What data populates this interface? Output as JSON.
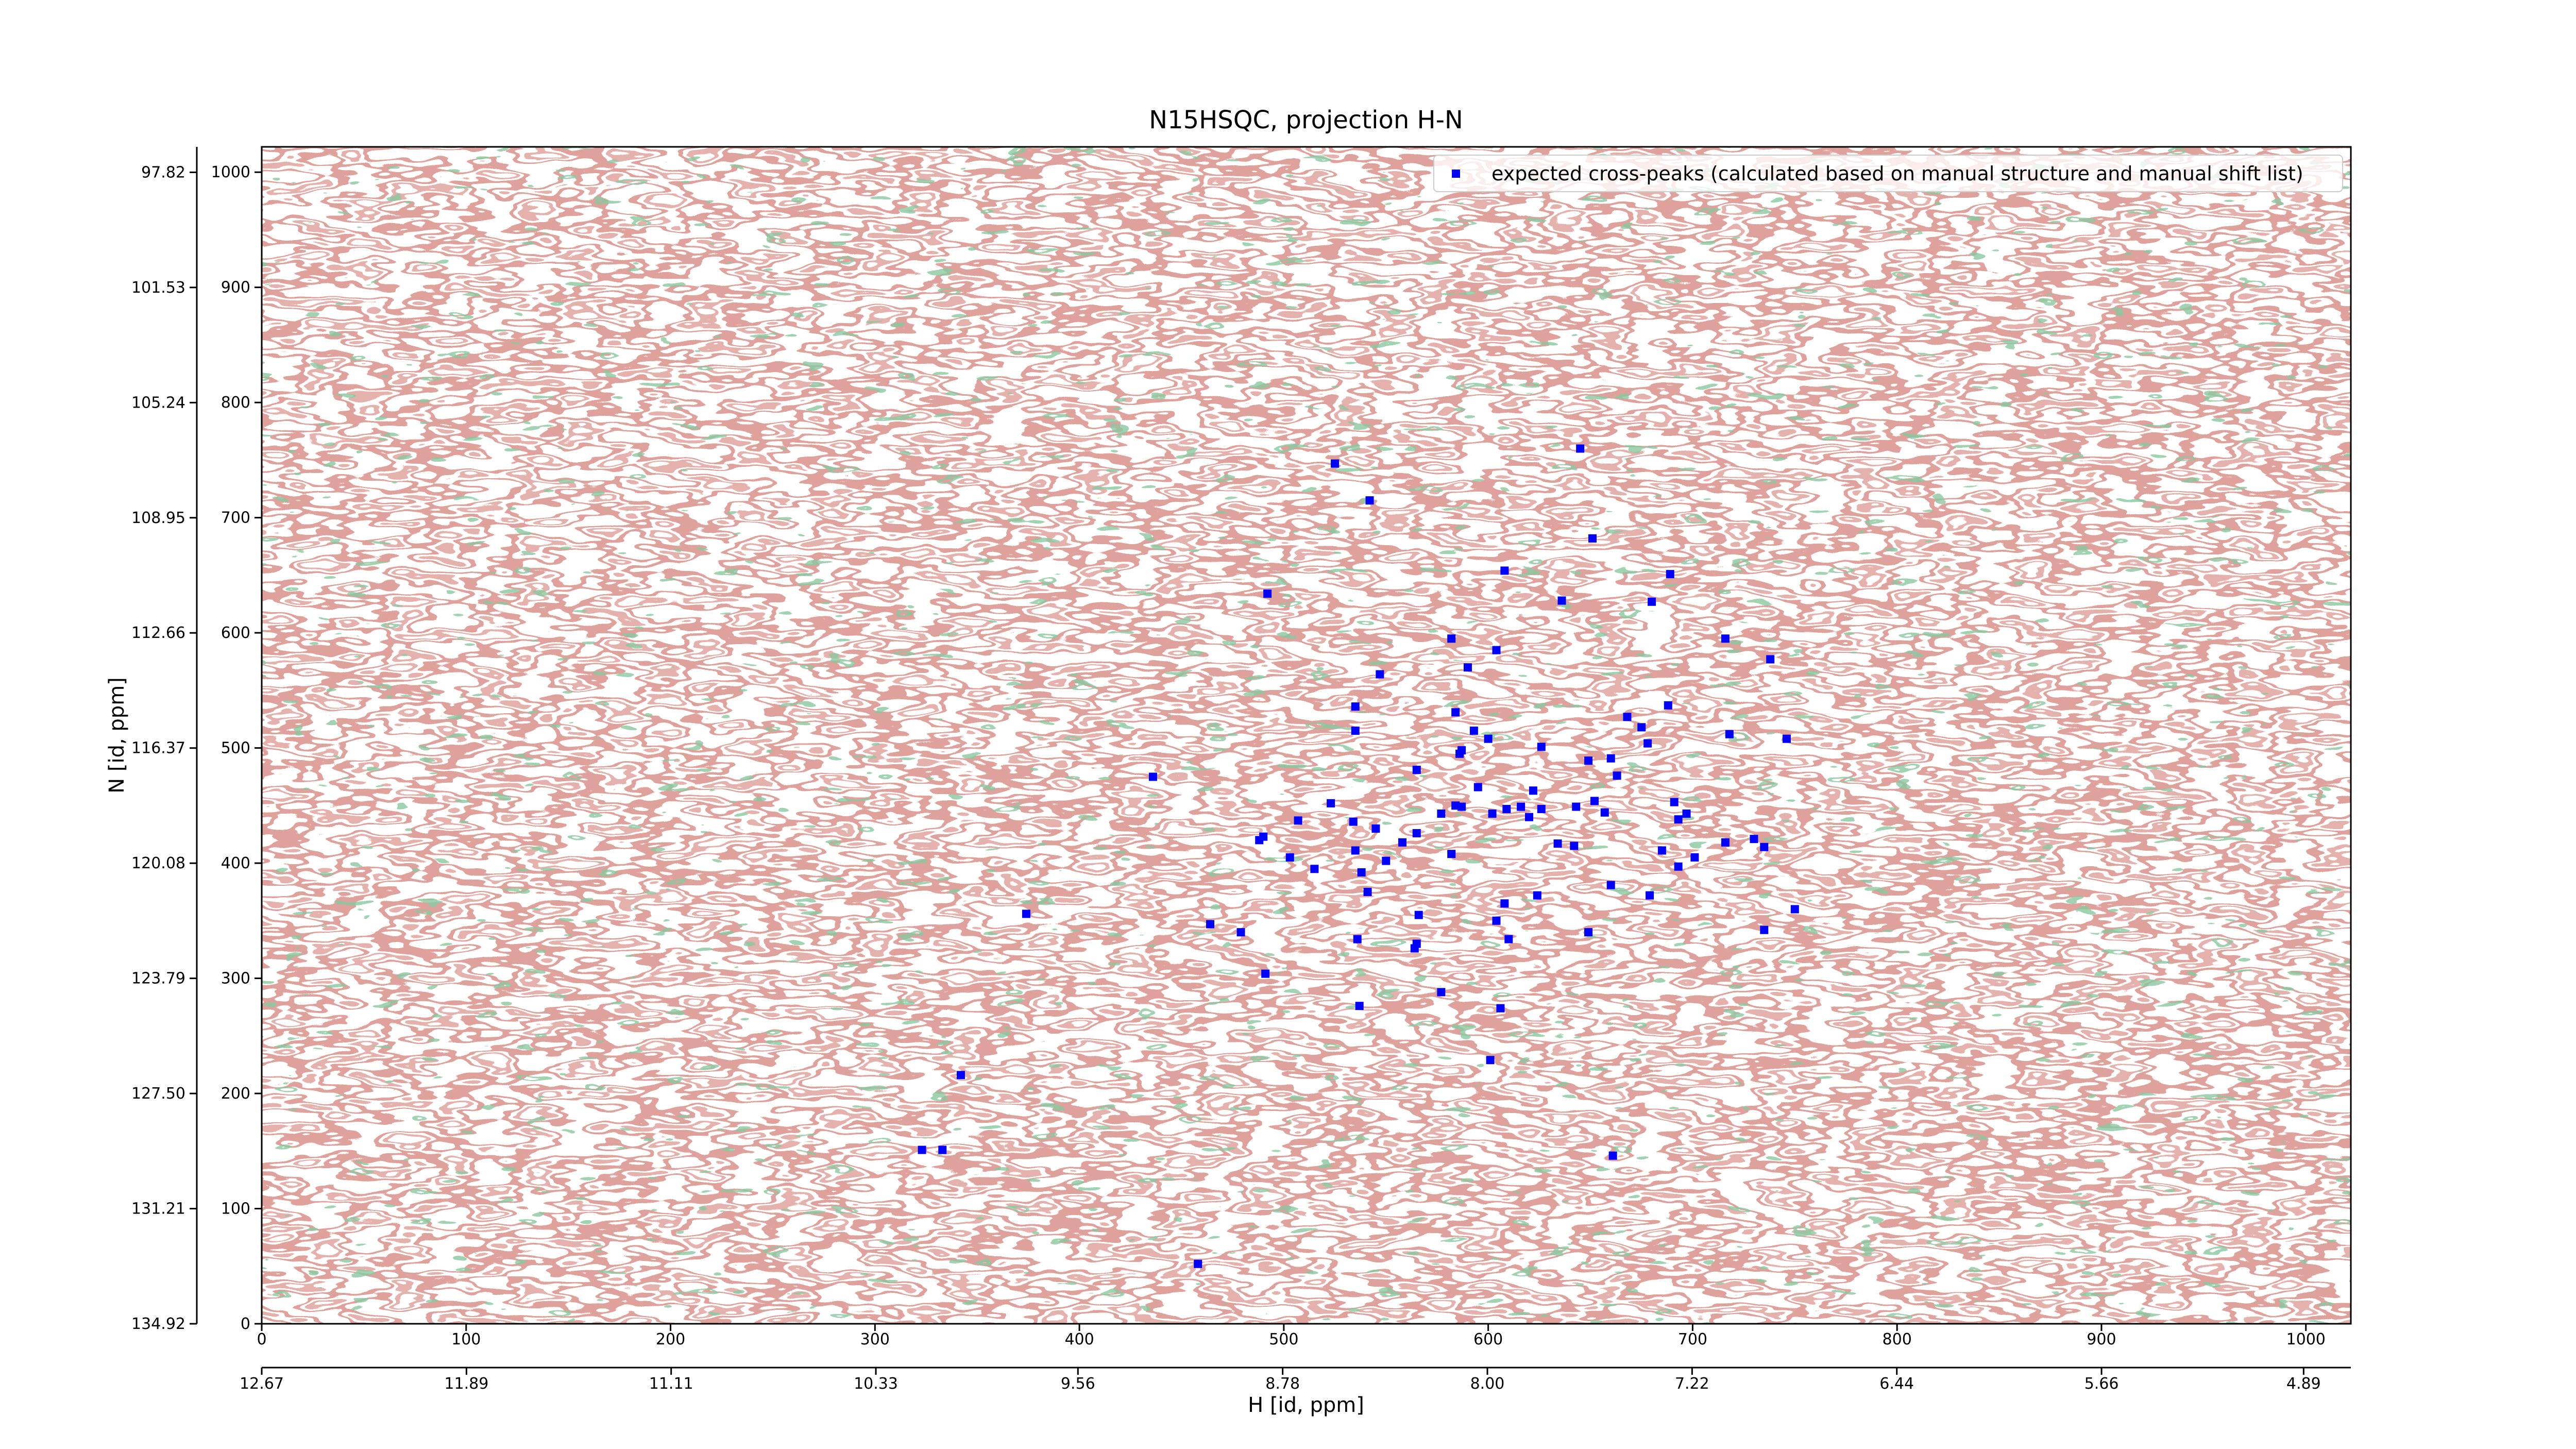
{
  "chart_data": {
    "type": "scatter",
    "title": "N15HSQC, projection H-N",
    "xlabel": "H [id, ppm]",
    "ylabel": "N [id, ppm]",
    "xlim": [
      0,
      1022
    ],
    "ylim": [
      0,
      1022
    ],
    "xticks": [
      0,
      100,
      200,
      300,
      400,
      500,
      600,
      700,
      800,
      900,
      1000
    ],
    "yticks": [
      0,
      100,
      200,
      300,
      400,
      500,
      600,
      700,
      800,
      900,
      1000
    ],
    "x2lim": [
      12.67,
      4.71
    ],
    "x2ticks": [
      12.67,
      11.89,
      11.11,
      10.33,
      9.56,
      8.78,
      {
        "value": 8,
        "label": "8.00"
      },
      7.22,
      6.44,
      5.66,
      4.89
    ],
    "y2lim": [
      134.92,
      97.0
    ],
    "y2ticks": [
      134.92,
      131.21,
      {
        "value": 127.5,
        "label": "127.50"
      },
      123.79,
      120.08,
      116.37,
      112.66,
      108.95,
      105.24,
      101.53,
      97.82
    ],
    "legend": "upper right",
    "series": [
      {
        "name": "expected cross-peaks (calculated based on manual structure and manual shift list)",
        "color": "#0000ff",
        "x": [
          525,
          542,
          645,
          651,
          492,
          608,
          636,
          680,
          689,
          582,
          604,
          590,
          547,
          716,
          738,
          535,
          535,
          584,
          593,
          600,
          587,
          586,
          626,
          668,
          675,
          688,
          678,
          718,
          746,
          436,
          565,
          595,
          649,
          660,
          663,
          622,
          609,
          616,
          626,
          643,
          652,
          657,
          620,
          602,
          587,
          584,
          577,
          523,
          507,
          534,
          545,
          565,
          558,
          490,
          488,
          535,
          550,
          503,
          515,
          538,
          582,
          634,
          642,
          691,
          697,
          693,
          716,
          730,
          735,
          685,
          693,
          701,
          541,
          624,
          660,
          679,
          608,
          464,
          479,
          374,
          566,
          604,
          649,
          610,
          565,
          564,
          536,
          735,
          750,
          491,
          577,
          537,
          606,
          601,
          342,
          323,
          333,
          661,
          458
        ],
        "values": [
          747,
          715,
          760,
          682,
          634,
          654,
          628,
          627,
          651,
          595,
          585,
          570,
          564,
          595,
          577,
          536,
          515,
          531,
          515,
          508,
          498,
          495,
          501,
          527,
          518,
          537,
          504,
          512,
          508,
          475,
          481,
          466,
          489,
          491,
          476,
          463,
          447,
          449,
          447,
          449,
          454,
          444,
          440,
          443,
          449,
          450,
          443,
          452,
          437,
          436,
          430,
          426,
          418,
          423,
          420,
          411,
          402,
          405,
          395,
          392,
          408,
          417,
          415,
          453,
          443,
          438,
          418,
          421,
          414,
          411,
          397,
          405,
          375,
          372,
          381,
          372,
          365,
          347,
          340,
          356,
          355,
          350,
          340,
          334,
          330,
          326,
          334,
          342,
          360,
          304,
          288,
          276,
          274,
          229,
          216,
          151,
          151,
          146,
          52
        ]
      }
    ]
  }
}
